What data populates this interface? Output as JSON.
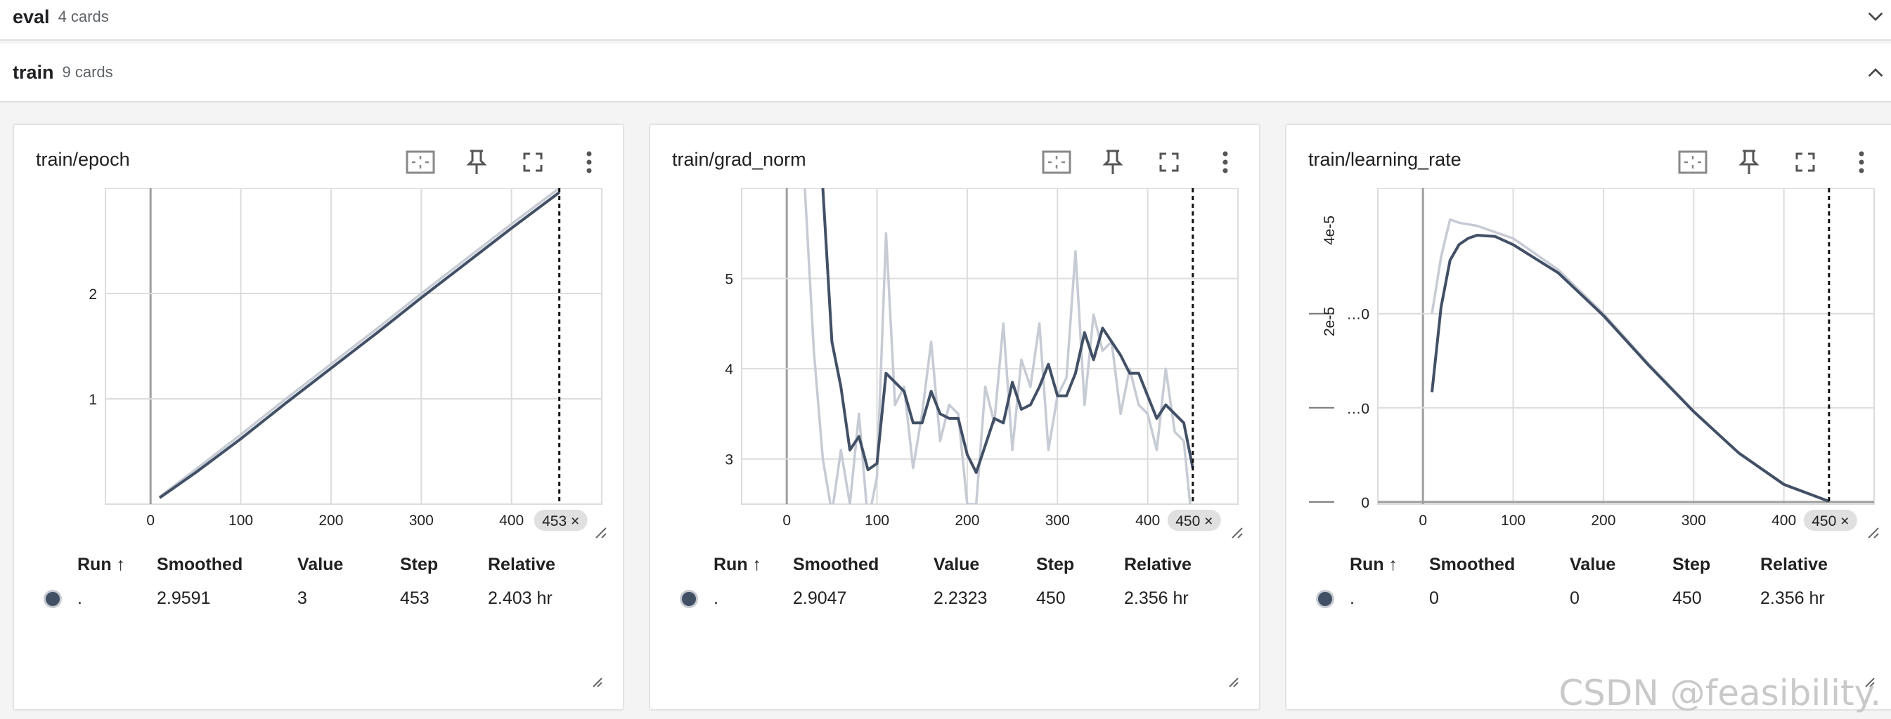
{
  "groups": [
    {
      "name": "eval",
      "count": "4 cards",
      "expanded": false
    },
    {
      "name": "train",
      "count": "9 cards",
      "expanded": true
    }
  ],
  "colors": {
    "smoothed": "#425066",
    "raw": "#c6cbd4",
    "grid": "#dcdcdc",
    "accent": "#425066"
  },
  "icons": [
    "fit-domain-icon",
    "pin-icon",
    "fullscreen-icon",
    "more-vert-icon",
    "chevron-down-icon",
    "chevron-up-icon",
    "resize-icon",
    "close-icon"
  ],
  "table_headers": {
    "run": "Run ↑",
    "smoothed": "Smoothed",
    "value": "Value",
    "step": "Step",
    "relative": "Relative"
  },
  "cards": [
    {
      "title": "train/epoch",
      "chips": "453 ×",
      "row": {
        "run": ".",
        "smoothed": "2.9591",
        "value": "3",
        "step": "453",
        "relative": "2.403 hr"
      }
    },
    {
      "title": "train/grad_norm",
      "chips": "450 ×",
      "row": {
        "run": ".",
        "smoothed": "2.9047",
        "value": "2.2323",
        "step": "450",
        "relative": "2.356 hr"
      }
    },
    {
      "title": "train/learning_rate",
      "chips": "450 ×",
      "row": {
        "run": ".",
        "smoothed": "0",
        "value": "0",
        "step": "450",
        "relative": "2.356 hr"
      }
    }
  ],
  "chart_data": [
    {
      "type": "line",
      "title": "train/epoch",
      "xlim": [
        -50,
        500
      ],
      "ylim": [
        0,
        3
      ],
      "x_ticks": [
        "0",
        "100",
        "200",
        "300",
        "400"
      ],
      "y_ticks": [
        "1",
        "2"
      ],
      "cursor_step": 453,
      "series": [
        {
          "role": "raw",
          "x": [
            10,
            50,
            100,
            150,
            200,
            250,
            300,
            350,
            400,
            453
          ],
          "y": [
            0.07,
            0.33,
            0.66,
            1.0,
            1.33,
            1.66,
            2.0,
            2.33,
            2.66,
            3.0
          ]
        },
        {
          "role": "smoothed",
          "x": [
            10,
            50,
            100,
            150,
            200,
            250,
            300,
            350,
            400,
            453
          ],
          "y": [
            0.06,
            0.3,
            0.62,
            0.96,
            1.29,
            1.62,
            1.96,
            2.29,
            2.62,
            2.96
          ]
        }
      ]
    },
    {
      "type": "line",
      "title": "train/grad_norm",
      "xlim": [
        -50,
        500
      ],
      "ylim": [
        2.5,
        6
      ],
      "x_ticks": [
        "0",
        "100",
        "200",
        "300",
        "400"
      ],
      "y_ticks": [
        "3",
        "4",
        "5"
      ],
      "cursor_step": 450,
      "series": [
        {
          "role": "raw",
          "x": [
            10,
            20,
            30,
            40,
            50,
            60,
            70,
            80,
            90,
            100,
            110,
            120,
            130,
            140,
            150,
            160,
            170,
            180,
            190,
            200,
            210,
            220,
            230,
            240,
            250,
            260,
            270,
            280,
            290,
            300,
            310,
            320,
            330,
            340,
            350,
            360,
            370,
            380,
            390,
            400,
            410,
            420,
            430,
            440,
            450
          ],
          "y": [
            6.5,
            6.0,
            4.2,
            3.0,
            2.4,
            3.1,
            2.5,
            3.5,
            2.3,
            2.8,
            5.5,
            3.6,
            3.8,
            2.9,
            3.5,
            4.3,
            3.2,
            3.6,
            3.5,
            2.5,
            2.5,
            3.8,
            3.4,
            4.5,
            3.1,
            4.1,
            3.8,
            4.5,
            3.1,
            3.7,
            3.9,
            5.3,
            3.6,
            4.6,
            4.2,
            4.3,
            3.5,
            4.0,
            3.6,
            3.5,
            3.1,
            4.0,
            3.3,
            3.2,
            2.2
          ]
        },
        {
          "role": "smoothed",
          "x": [
            40,
            50,
            60,
            70,
            80,
            90,
            100,
            110,
            120,
            130,
            140,
            150,
            160,
            170,
            180,
            190,
            200,
            210,
            220,
            230,
            240,
            250,
            260,
            270,
            280,
            290,
            300,
            310,
            320,
            330,
            340,
            350,
            360,
            370,
            380,
            390,
            400,
            410,
            420,
            430,
            440,
            450
          ],
          "y": [
            6.0,
            4.3,
            3.8,
            3.1,
            3.25,
            2.88,
            2.95,
            3.95,
            3.85,
            3.75,
            3.4,
            3.4,
            3.75,
            3.5,
            3.45,
            3.45,
            3.05,
            2.85,
            3.15,
            3.45,
            3.4,
            3.85,
            3.55,
            3.6,
            3.8,
            4.05,
            3.7,
            3.7,
            3.95,
            4.4,
            4.1,
            4.45,
            4.3,
            4.15,
            3.95,
            3.95,
            3.7,
            3.45,
            3.6,
            3.5,
            3.4,
            2.9
          ]
        }
      ]
    },
    {
      "type": "line",
      "title": "train/learning_rate",
      "xlim": [
        -50,
        500
      ],
      "ylim": [
        -3.5e-07,
        5e-05
      ],
      "y_axis_labels": [
        "4e-5",
        "2e-5"
      ],
      "y_ticks": [
        "…0",
        "…0",
        "0"
      ],
      "x_ticks": [
        "0",
        "100",
        "200",
        "300",
        "400"
      ],
      "cursor_step": 450,
      "series": [
        {
          "role": "raw",
          "x": [
            10,
            20,
            30,
            40,
            60,
            80,
            100,
            150,
            200,
            250,
            300,
            350,
            400,
            450
          ],
          "y": [
            3e-05,
            3.9e-05,
            4.5e-05,
            4.45e-05,
            4.4e-05,
            4.3e-05,
            4.2e-05,
            3.7e-05,
            3e-05,
            2.2e-05,
            1.45e-05,
            7.8e-06,
            2.7e-06,
            1e-07
          ]
        },
        {
          "role": "smoothed",
          "x": [
            10,
            20,
            30,
            40,
            50,
            60,
            80,
            100,
            150,
            200,
            250,
            300,
            350,
            400,
            450
          ],
          "y": [
            1.75e-05,
            3.1e-05,
            3.85e-05,
            4.1e-05,
            4.2e-05,
            4.25e-05,
            4.23e-05,
            4.1e-05,
            3.65e-05,
            2.97e-05,
            2.18e-05,
            1.44e-05,
            7.8e-06,
            2.8e-06,
            1e-07
          ]
        }
      ]
    }
  ],
  "watermark": "CSDN @feasibility."
}
